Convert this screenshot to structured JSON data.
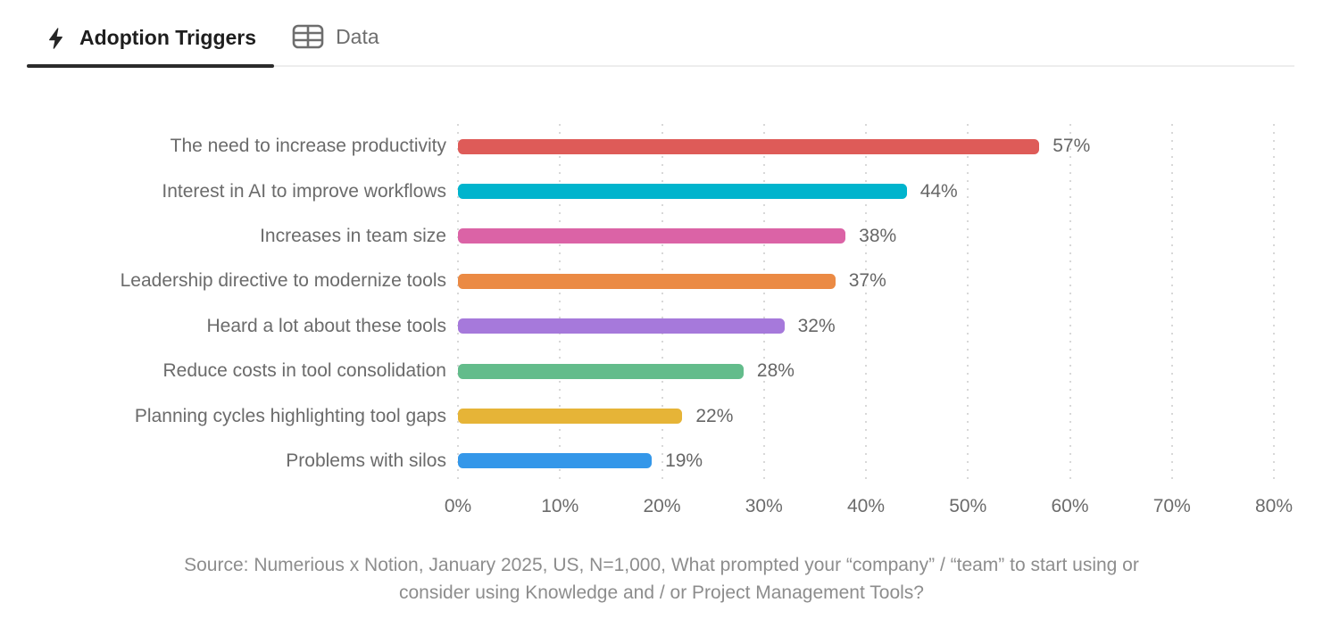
{
  "tabs": [
    {
      "label": "Adoption Triggers",
      "icon": "lightning-icon",
      "active": true
    },
    {
      "label": "Data",
      "icon": "table-icon",
      "active": false
    }
  ],
  "chart_data": {
    "type": "bar",
    "orientation": "horizontal",
    "title": "Adoption Triggers",
    "categories": [
      "The need to increase productivity",
      "Interest in AI to improve workflows",
      "Increases in team size",
      "Leadership directive to modernize tools",
      "Heard a lot about these tools",
      "Reduce costs in tool consolidation",
      "Planning cycles highlighting tool gaps",
      "Problems with silos"
    ],
    "values": [
      57,
      44,
      38,
      37,
      32,
      28,
      22,
      19
    ],
    "value_labels": [
      "57%",
      "44%",
      "38%",
      "37%",
      "32%",
      "28%",
      "22%",
      "19%"
    ],
    "bar_colors": [
      "#DE5B58",
      "#00B4CD",
      "#DB63A6",
      "#EB8A44",
      "#A679DB",
      "#63BC8B",
      "#E6B437",
      "#3497E9"
    ],
    "x_ticks": [
      "0%",
      "10%",
      "20%",
      "30%",
      "40%",
      "50%",
      "60%",
      "70%",
      "80%"
    ],
    "xlim": [
      0,
      80
    ],
    "grid": "dotted-vertical",
    "legend": "none",
    "source_line1": "Source: Numerious x Notion, January 2025, US, N=1,000, What prompted your “company” / “team” to start using or",
    "source_line2": "consider using Knowledge and / or Project Management Tools?"
  },
  "colors": {
    "active_tab_text": "#1e1e1e",
    "inactive_tab_text": "#6e6e6e",
    "active_tab_underline": "#2b2b2b",
    "axis_label": "#6b6b6b",
    "value_label": "#666666",
    "gridline": "#d8d8d8",
    "source_text": "#8d8d8d"
  }
}
